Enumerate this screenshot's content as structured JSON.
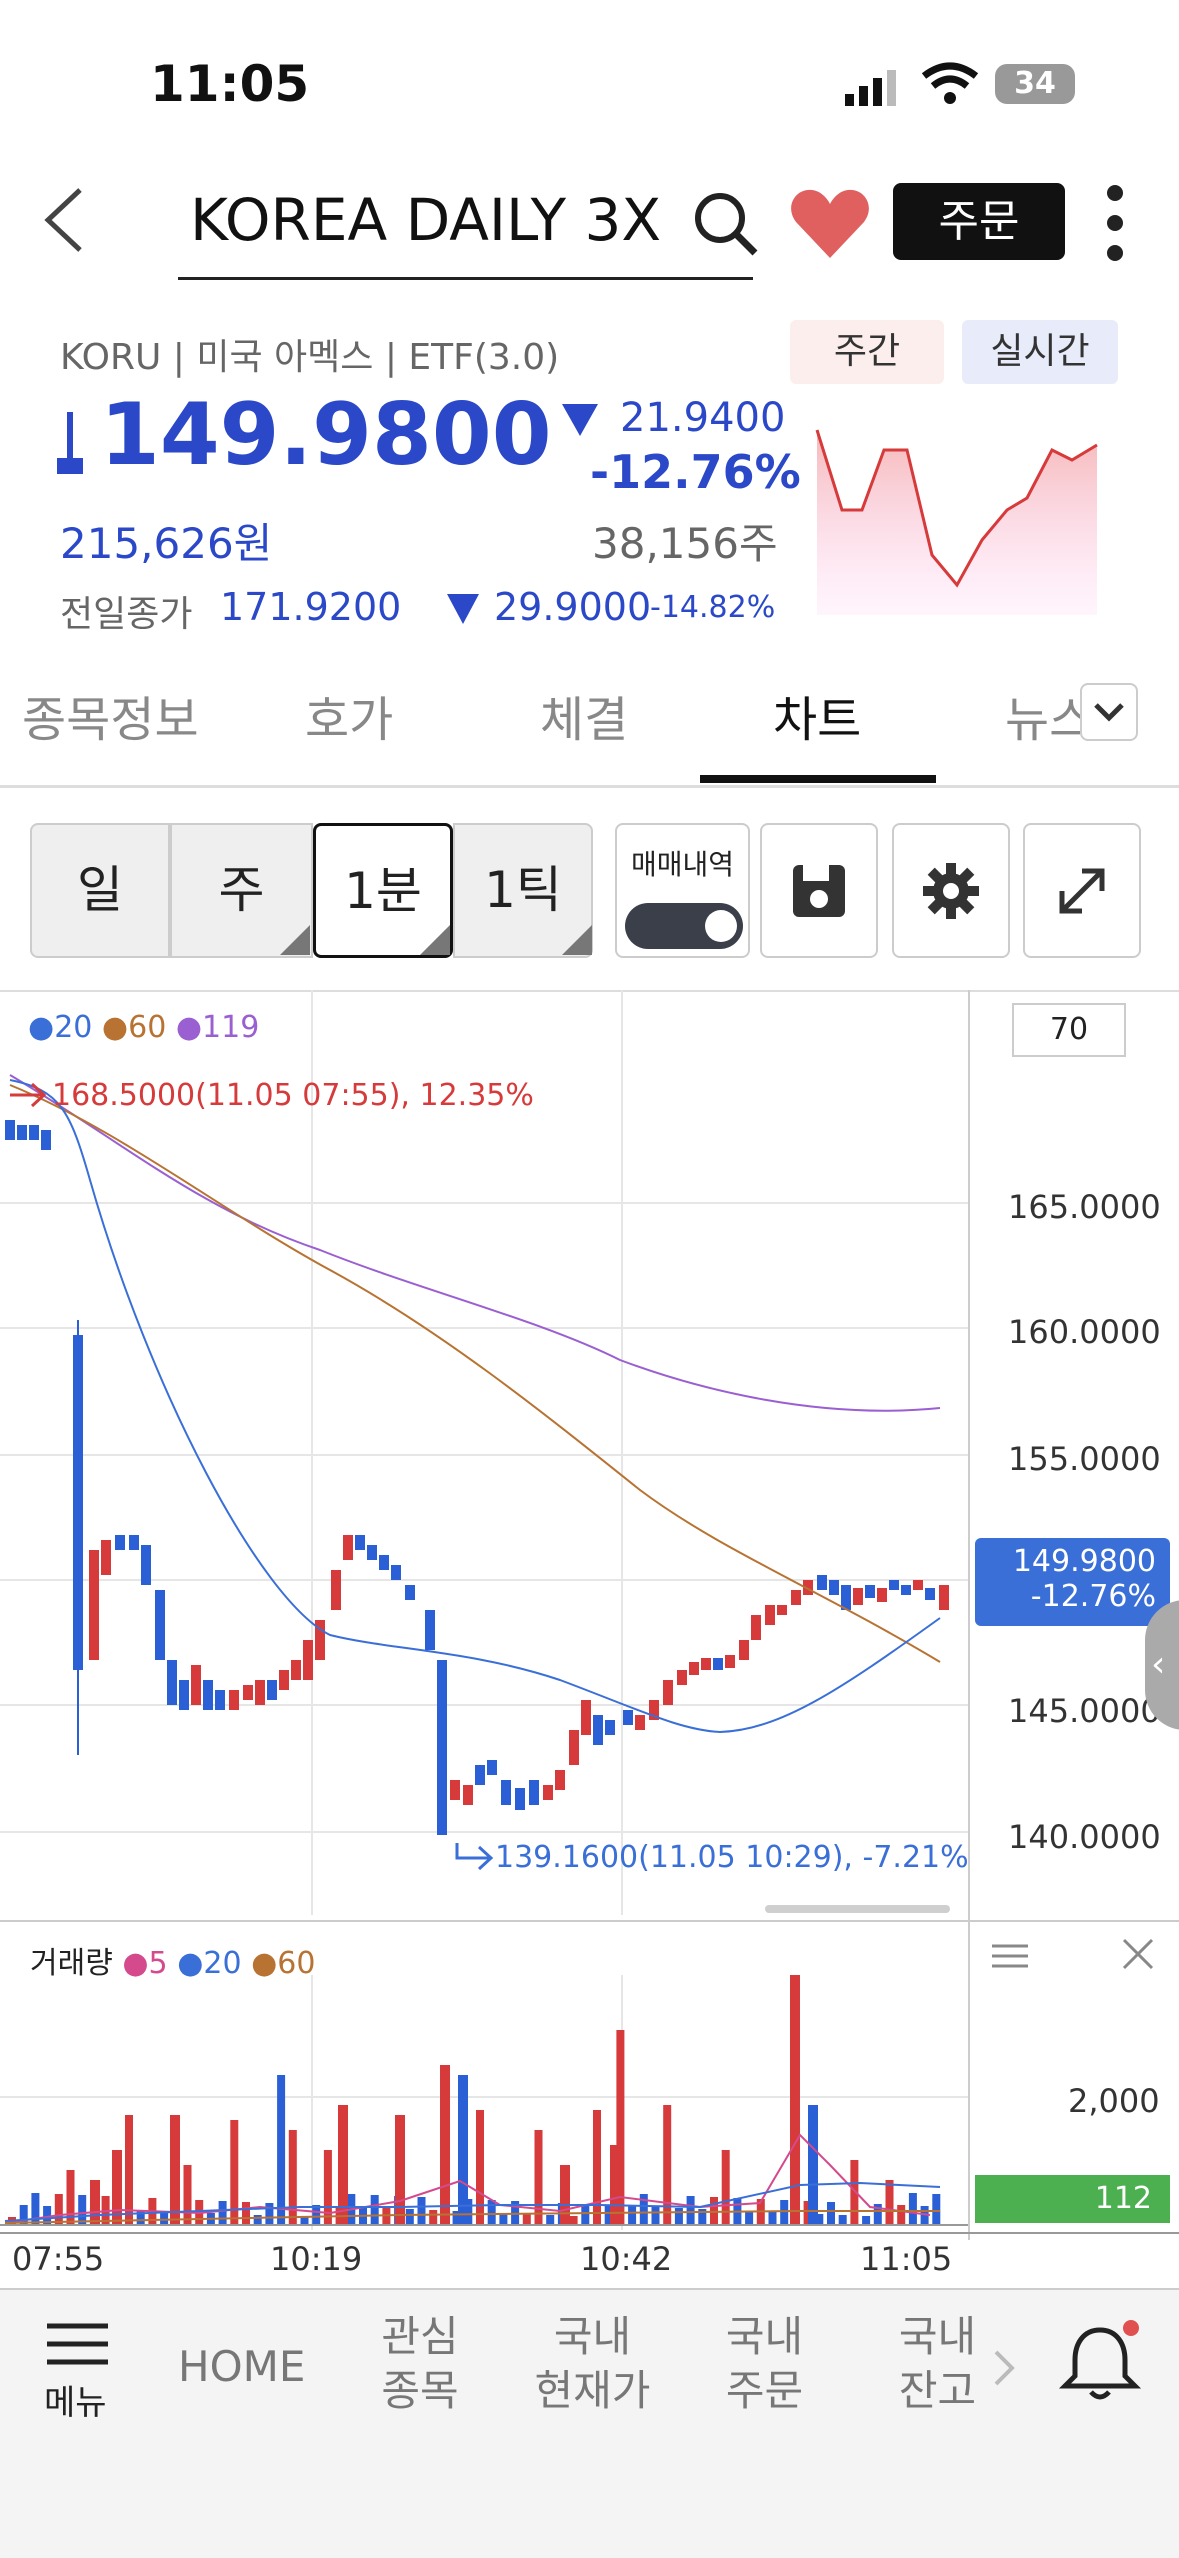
{
  "status": {
    "time": "11:05",
    "battery": "34"
  },
  "header": {
    "title": "KOREA DAILY 3X",
    "order_label": "주문"
  },
  "summary": {
    "meta": "KORU | 미국 아멕스 | ETF(3.0)",
    "toggle_weekly": "주간",
    "toggle_realtime": "실시간",
    "price": "149.9800",
    "change": "21.9400",
    "change_pct": "-12.76%",
    "krw_value": "215,626원",
    "volume": "38,156주",
    "prev_close_label": "전일종가",
    "prev_close": "171.9200",
    "prev_change": "29.9000",
    "prev_change_pct": "-14.82%"
  },
  "tabs": [
    "종목정보",
    "호가",
    "체결",
    "차트",
    "뉴스"
  ],
  "toolbar": {
    "periods": [
      "일",
      "주",
      "1분",
      "1틱"
    ],
    "trade_history": "매매내역"
  },
  "chart": {
    "ma_legend": [
      "20",
      "60",
      "119"
    ],
    "setting_value": "70",
    "high_annotation": "168.5000(11.05 07:55), 12.35%",
    "low_annotation": "139.1600(11.05 10:29), -7.21%",
    "price_ticks": [
      "165.0000",
      "160.0000",
      "155.0000",
      "145.0000",
      "140.0000"
    ],
    "current_price": "149.9800",
    "current_pct": "-12.76%",
    "volume_label": "거래량",
    "volume_ma": [
      "5",
      "20",
      "60"
    ],
    "volume_tick": "2,000",
    "volume_current": "112",
    "time_ticks": [
      "07:55",
      "10:19",
      "10:42",
      "11:05"
    ]
  },
  "colors": {
    "up": "#d63a3a",
    "down": "#2a5fd6",
    "brand_blue": "#2a48c7",
    "volume_badge": "#4caf50"
  },
  "nav": {
    "menu": "메뉴",
    "home": "HOME",
    "watch_1": "관심",
    "watch_2": "종목",
    "price_1": "국내",
    "price_2": "현재가",
    "order_1": "국내",
    "order_2": "주문",
    "balance_1": "국내",
    "balance_2": "잔고"
  }
}
